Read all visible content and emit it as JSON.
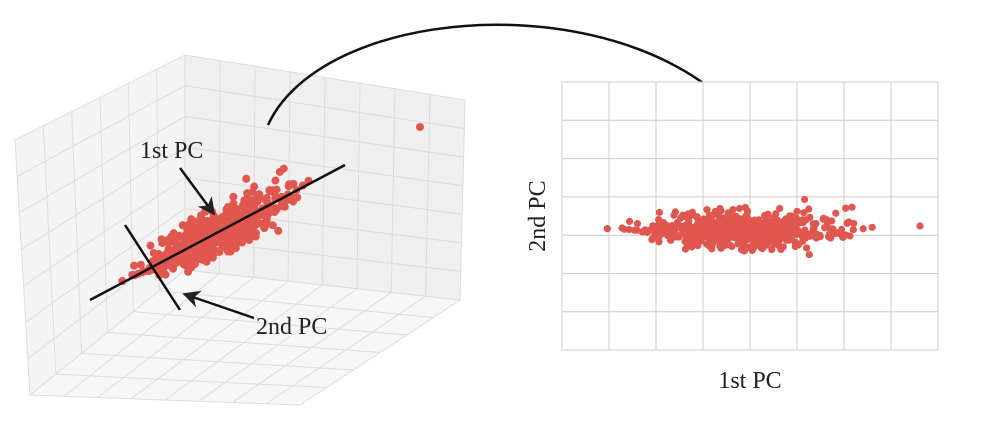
{
  "left_panel": {
    "annotations": [
      "1st PC",
      "2nd PC"
    ]
  },
  "right_panel": {
    "x_label": "1st PC",
    "y_label": "2nd PC"
  }
}
